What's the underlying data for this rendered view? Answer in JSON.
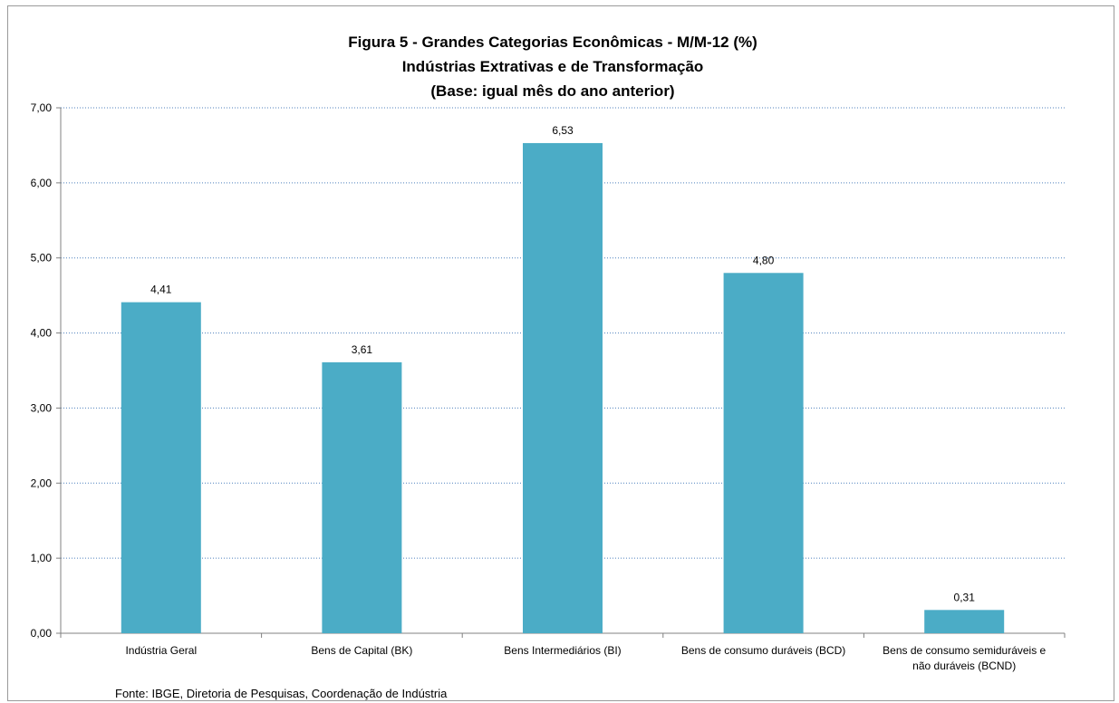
{
  "chart_data": {
    "type": "bar",
    "title": [
      "Figura 5 - Grandes Categorias Econômicas - M/M-12 (%)",
      "Indústrias Extrativas e de Transformação",
      "(Base: igual mês do ano anterior)"
    ],
    "categories": [
      [
        "Indústria Geral"
      ],
      [
        "Bens de Capital (BK)"
      ],
      [
        "Bens Intermediários (BI)"
      ],
      [
        "Bens de consumo duráveis (BCD)"
      ],
      [
        "Bens de consumo semiduráveis e",
        "não duráveis (BCND)"
      ]
    ],
    "values": [
      4.41,
      3.61,
      6.53,
      4.8,
      0.31
    ],
    "value_labels": [
      "4,41",
      "3,61",
      "6,53",
      "4,80",
      "0,31"
    ],
    "ylim": [
      0,
      7
    ],
    "yticks": [
      0,
      1,
      2,
      3,
      4,
      5,
      6,
      7
    ],
    "ytick_labels": [
      "0,00",
      "1,00",
      "2,00",
      "3,00",
      "4,00",
      "5,00",
      "6,00",
      "7,00"
    ],
    "xlabel": "",
    "ylabel": "",
    "grid": true,
    "bar_color": "#4BACC6",
    "gridline_color": "#4F81BD",
    "source": "Fonte: IBGE, Diretoria de Pesquisas, Coordenação de Indústria"
  }
}
